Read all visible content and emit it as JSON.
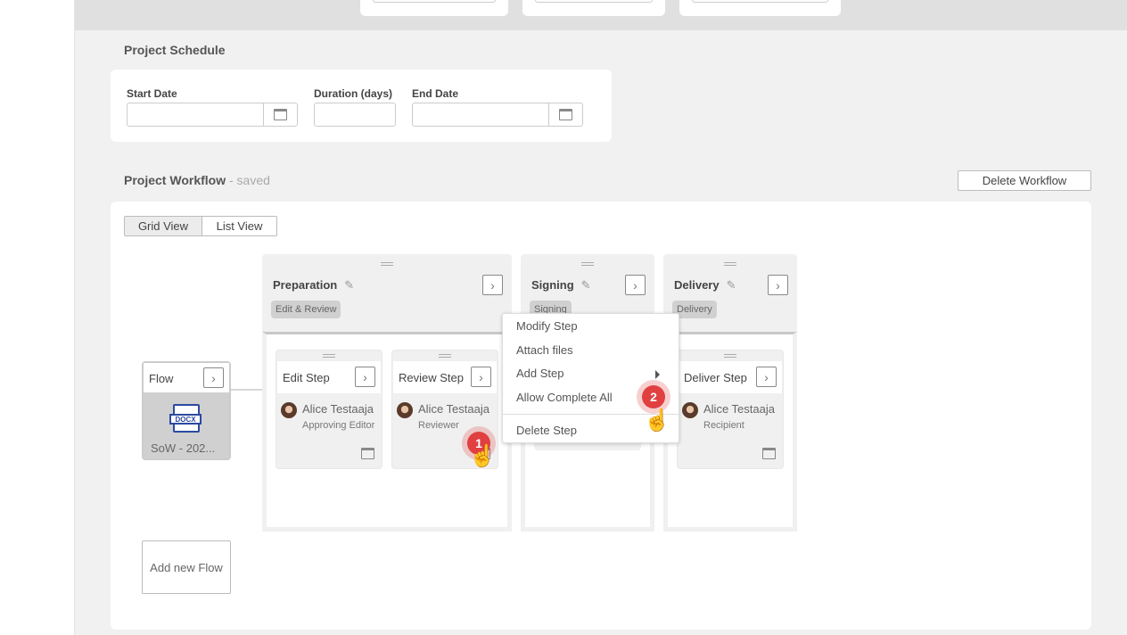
{
  "schedule": {
    "title": "Project Schedule",
    "start_label": "Start Date",
    "duration_label": "Duration (days)",
    "end_label": "End Date",
    "start_value": "",
    "duration_value": "",
    "end_value": ""
  },
  "workflow": {
    "title": "Project Workflow",
    "status": " - saved",
    "delete_button": "Delete Workflow",
    "views": [
      {
        "label": "Grid View",
        "active": true
      },
      {
        "label": "List View",
        "active": false
      }
    ]
  },
  "flow": {
    "title": "Flow",
    "file_type": "DOCX",
    "file_name": "SoW - 202...",
    "add_label": "Add new Flow"
  },
  "stages": [
    {
      "title": "Preparation",
      "tag": "Edit & Review"
    },
    {
      "title": "Signing",
      "tag": "Signing"
    },
    {
      "title": "Delivery",
      "tag": "Delivery"
    }
  ],
  "steps": [
    {
      "name": "Edit Step",
      "person": "Alice Testaaja",
      "role": "Approving Editor"
    },
    {
      "name": "Review Step",
      "person": "Alice Testaaja",
      "role": "Reviewer"
    },
    {
      "name": "Deliver Step",
      "person": "Alice Testaaja",
      "role": "Recipient"
    }
  ],
  "context_menu": {
    "items": [
      "Modify Step",
      "Attach files",
      "Add Step",
      "Allow Complete All",
      "Delete Step"
    ]
  },
  "annotations": [
    "1",
    "2"
  ],
  "colors": {
    "accent": "#e04040",
    "background": "#f1f1f1"
  }
}
